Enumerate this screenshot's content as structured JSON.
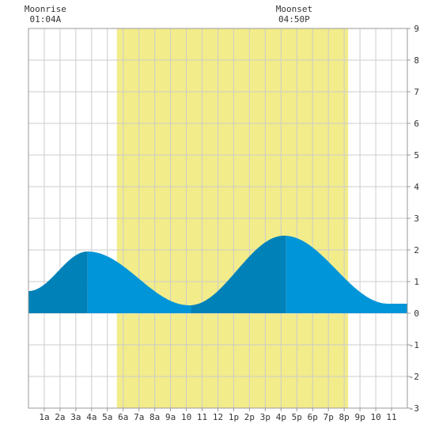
{
  "chart_data": {
    "type": "area",
    "title": "",
    "xlabel": "",
    "ylabel": "",
    "x_range_hours": [
      0,
      24
    ],
    "ylim": [
      -3,
      9
    ],
    "y_ticks": [
      -3,
      -2,
      -1,
      0,
      1,
      2,
      3,
      4,
      5,
      6,
      7,
      8,
      9
    ],
    "x_ticks": [
      {
        "hour": 1,
        "label": "1a"
      },
      {
        "hour": 2,
        "label": "2a"
      },
      {
        "hour": 3,
        "label": "3a"
      },
      {
        "hour": 4,
        "label": "4a"
      },
      {
        "hour": 5,
        "label": "5a"
      },
      {
        "hour": 6,
        "label": "6a"
      },
      {
        "hour": 7,
        "label": "7a"
      },
      {
        "hour": 8,
        "label": "8a"
      },
      {
        "hour": 9,
        "label": "9a"
      },
      {
        "hour": 10,
        "label": "10"
      },
      {
        "hour": 11,
        "label": "11"
      },
      {
        "hour": 12,
        "label": "12"
      },
      {
        "hour": 13,
        "label": "1p"
      },
      {
        "hour": 14,
        "label": "2p"
      },
      {
        "hour": 15,
        "label": "3p"
      },
      {
        "hour": 16,
        "label": "4p"
      },
      {
        "hour": 17,
        "label": "5p"
      },
      {
        "hour": 18,
        "label": "6p"
      },
      {
        "hour": 19,
        "label": "7p"
      },
      {
        "hour": 20,
        "label": "8p"
      },
      {
        "hour": 21,
        "label": "9p"
      },
      {
        "hour": 22,
        "label": "10"
      },
      {
        "hour": 23,
        "label": "11"
      }
    ],
    "grid": true,
    "daylight_hours": [
      5.6,
      20.25
    ],
    "tide_series": {
      "hours": [
        0,
        3.75,
        10.2,
        16.2,
        22.8,
        24
      ],
      "heights": [
        0.7,
        1.95,
        0.25,
        2.45,
        0.3,
        0.3
      ]
    },
    "shading_boundaries_hours": [
      3.75,
      10.3,
      16.3
    ],
    "annotations": [
      {
        "hour": 1.07,
        "title": "Moonrise",
        "time": "01:04A"
      },
      {
        "hour": 16.83,
        "title": "Moonset",
        "time": "04:50P"
      }
    ],
    "colors": {
      "background": "#ffffff",
      "daylight": "#f2ec8a",
      "grid": "#cccccc",
      "tide_light": "#0095d8",
      "tide_dark": "#0081b8",
      "border": "#999999",
      "text": "#333333"
    }
  }
}
